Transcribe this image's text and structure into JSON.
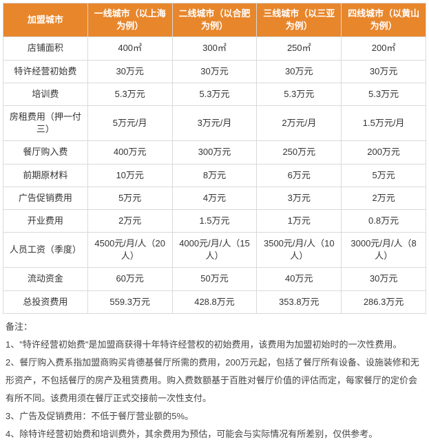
{
  "table": {
    "header_bg": "#e8862c",
    "header_text_color": "#ffffff",
    "border_color": "#d9d9d9",
    "columns": [
      "加盟城市",
      "一线城市（以上海为例）",
      "二线城市（以合肥为例）",
      "三线城市（以三亚为例）",
      "四线城市（以黄山为例）"
    ],
    "rows": [
      [
        "店铺面积",
        "400㎡",
        "300㎡",
        "250㎡",
        "200㎡"
      ],
      [
        "特许经营初始费",
        "30万元",
        "30万元",
        "30万元",
        "30万元"
      ],
      [
        "培训费",
        "5.3万元",
        "5.3万元",
        "5.3万元",
        "5.3万元"
      ],
      [
        "房租费用（押一付三）",
        "5万元/月",
        "3万元/月",
        "2万元/月",
        "1.5万元/月"
      ],
      [
        "餐厅购入费",
        "400万元",
        "300万元",
        "250万元",
        "200万元"
      ],
      [
        "前期原材料",
        "10万元",
        "8万元",
        "6万元",
        "5万元"
      ],
      [
        "广告促销费用",
        "5万元",
        "4万元",
        "3万元",
        "2万元"
      ],
      [
        "开业费用",
        "2万元",
        "1.5万元",
        "1万元",
        "0.8万元"
      ],
      [
        "人员工资（季度）",
        "4500元/月/人（20人）",
        "4000元/月/人（15人）",
        "3500元/月/人（10人）",
        "3000元/月/人（8人）"
      ],
      [
        "流动资金",
        "60万元",
        "50万元",
        "40万元",
        "30万元"
      ],
      [
        "总投资费用",
        "559.3万元",
        "428.8万元",
        "353.8万元",
        "286.3万元"
      ]
    ]
  },
  "notes": {
    "title": "备注：",
    "items": [
      "1、\"特许经营初始费\"是加盟商获得十年特许经营权的初始费用，该费用为加盟初始时的一次性费用。",
      "2、餐厅购入费系指加盟商购买肯德基餐厅所需的费用，200万元起，包括了餐厅所有设备、设施装修和无形资产，不包括餐厅的房产及租赁费用。购入费数额基于百胜对餐厅价值的评估而定，每家餐厅的定价会有所不同。该费用须在餐厅正式交接前一次性支付。",
      "3、广告及促销费用：不低于餐厅营业额的5%。",
      "4、除特许经营初始费和培训费外，其余费用为预估，可能会与实际情况有所差别，仅供参考。"
    ]
  }
}
